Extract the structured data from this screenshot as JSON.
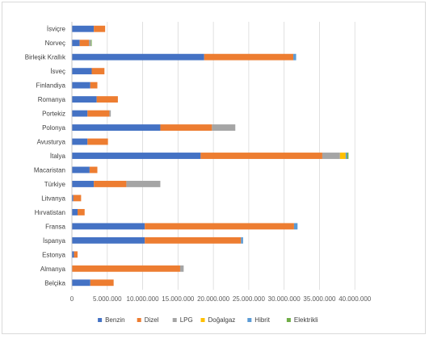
{
  "chart_data": {
    "type": "bar",
    "orientation": "horizontal",
    "stacked": true,
    "title": "",
    "xlabel": "",
    "ylabel": "",
    "xlim": [
      0,
      45000000
    ],
    "x_ticks": [
      "0",
      "5.000.000",
      "10.000.000",
      "15.000.000",
      "20.000.000",
      "25.000.000",
      "30.000.000",
      "35.000.000",
      "40.000.000"
    ],
    "x_tick_values": [
      0,
      5000000,
      10000000,
      15000000,
      20000000,
      25000000,
      30000000,
      35000000,
      40000000
    ],
    "grid": true,
    "legend_position": "bottom",
    "categories": [
      "İsviçre",
      "Norveç",
      "Birleşik Krallık",
      "İsveç",
      "Finlandiya",
      "Romanya",
      "Portekiz",
      "Polonya",
      "Avusturya",
      "İtalya",
      "Macaristan",
      "Türkiye",
      "Litvanya",
      "Hırvatistan",
      "Fransa",
      "İspanya",
      "Estonya",
      "Almanya",
      "Belçika"
    ],
    "series": [
      {
        "name": "Benzin",
        "color": "#4472c4",
        "values": [
          3100000,
          1100000,
          18700000,
          2800000,
          2600000,
          3500000,
          2200000,
          12500000,
          2200000,
          18200000,
          2500000,
          3100000,
          200000,
          800000,
          10300000,
          10300000,
          300000,
          0,
          2600000
        ]
      },
      {
        "name": "Dizel",
        "color": "#ed7d31",
        "values": [
          1600000,
          1300000,
          12600000,
          1800000,
          1000000,
          3000000,
          3100000,
          7300000,
          2900000,
          17200000,
          1100000,
          4600000,
          1100000,
          1000000,
          21100000,
          13600000,
          500000,
          15300000,
          3300000
        ]
      },
      {
        "name": "LPG",
        "color": "#a5a5a5",
        "values": [
          0,
          300000,
          0,
          0,
          0,
          0,
          200000,
          3300000,
          0,
          2500000,
          0,
          4800000,
          0,
          0,
          0,
          0,
          0,
          500000,
          0
        ]
      },
      {
        "name": "Doğalgaz",
        "color": "#ffc000",
        "values": [
          0,
          0,
          0,
          0,
          0,
          0,
          0,
          0,
          0,
          800000,
          0,
          0,
          0,
          0,
          0,
          0,
          0,
          0,
          0
        ]
      },
      {
        "name": "Hibrit",
        "color": "#5b9bd5",
        "values": [
          0,
          0,
          400000,
          0,
          0,
          0,
          0,
          0,
          0,
          200000,
          0,
          0,
          0,
          0,
          500000,
          300000,
          0,
          0,
          0
        ]
      },
      {
        "name": "Elektrikli",
        "color": "#70ad47",
        "values": [
          0,
          100000,
          0,
          0,
          0,
          0,
          0,
          0,
          0,
          200000,
          0,
          0,
          0,
          0,
          0,
          0,
          0,
          0,
          0
        ]
      }
    ]
  }
}
